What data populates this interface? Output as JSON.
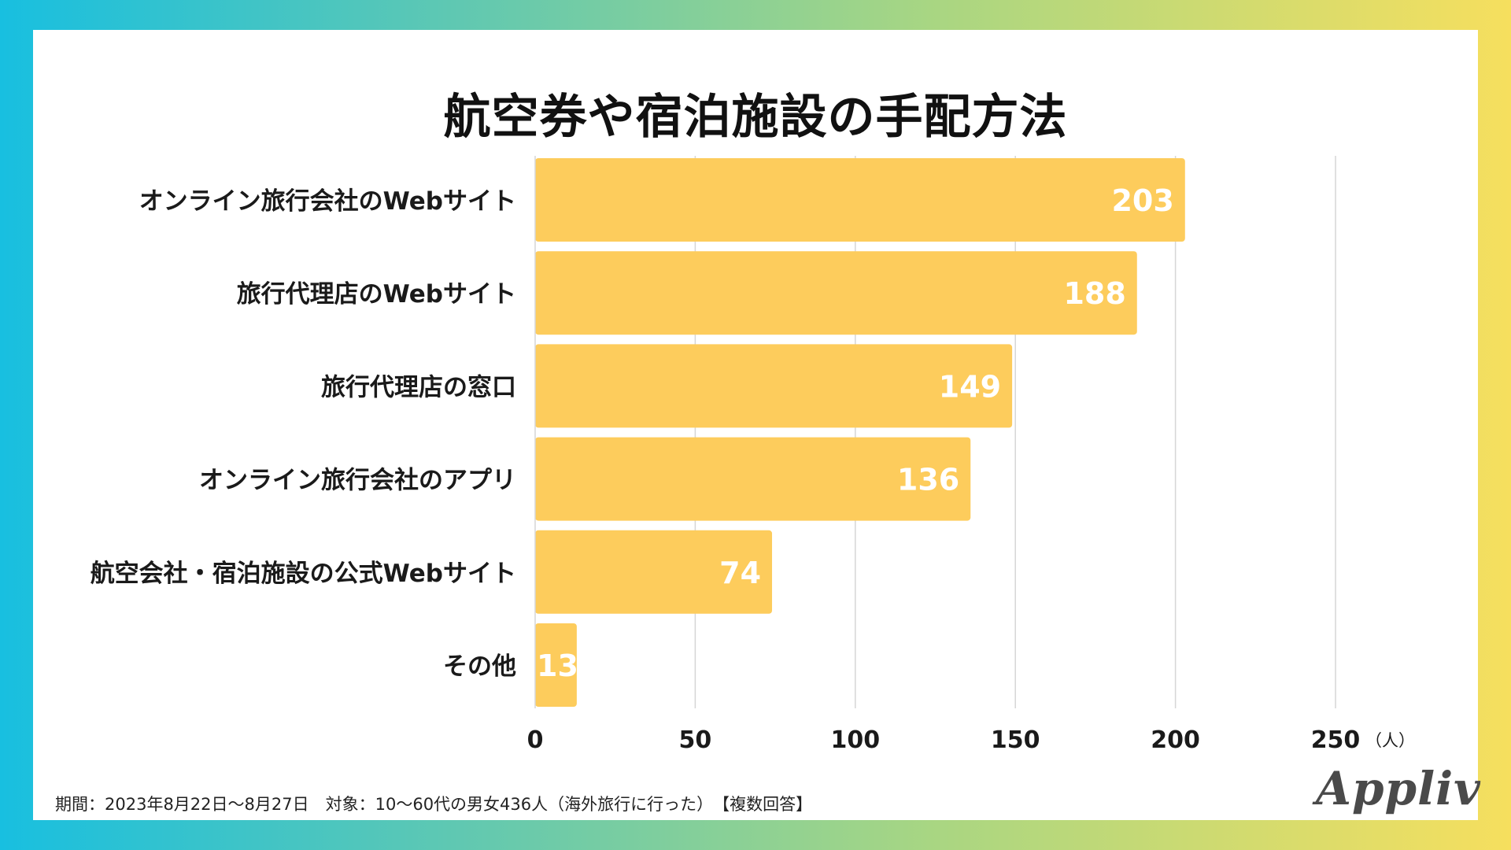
{
  "title": "航空券や宿泊施設の手配方法",
  "footer": {
    "note": "期間：2023年8月22日～8月27日　対象：10～60代の男女436人（海外旅行に行った）　【複数回答】"
  },
  "logo": {
    "text": "Appliv"
  },
  "colors": {
    "bar": "#FDCC5C",
    "grid": "#d6d6d6",
    "label": "#1a1a1a",
    "value": "#ffffff"
  },
  "chart_data": {
    "type": "bar",
    "orientation": "horizontal",
    "categories": [
      "オンライン旅行会社のWebサイト",
      "旅行代理店のWebサイト",
      "旅行代理店の窓口",
      "オンライン旅行会社のアプリ",
      "航空会社・宿泊施設の公式Webサイト",
      "その他"
    ],
    "values": [
      203,
      188,
      149,
      136,
      74,
      13
    ],
    "xlim": [
      0,
      250
    ],
    "ticks": [
      0,
      50,
      100,
      150,
      200,
      250
    ],
    "unit": "（人）",
    "grid": true
  }
}
